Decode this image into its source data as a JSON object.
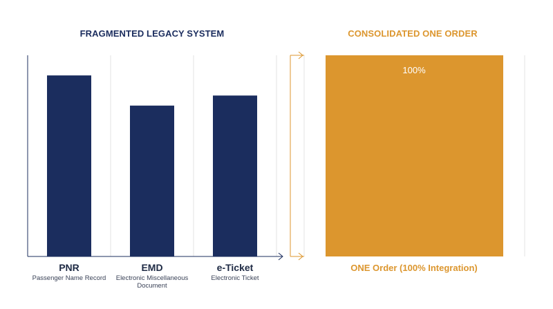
{
  "colors": {
    "navy": "#1b2d5e",
    "orange": "#dc962e",
    "grid": "#e3e3e3",
    "white": "#ffffff"
  },
  "titles": {
    "left": "FRAGMENTED LEGACY SYSTEM",
    "right": "CONSOLIDATED ONE ORDER"
  },
  "chart_data": [
    {
      "type": "bar",
      "title": "FRAGMENTED LEGACY SYSTEM",
      "categories": [
        "PNR",
        "EMD",
        "e-Ticket"
      ],
      "subtitles": [
        "Passenger Name Record",
        "Electronic Miscellaneous Document",
        "Electronic Ticket"
      ],
      "subtitle_lines": [
        [
          "Passenger Name Record"
        ],
        [
          "Electronic Miscellaneous",
          "Document"
        ],
        [
          "Electronic Ticket"
        ]
      ],
      "values": [
        90,
        75,
        80
      ],
      "ylim": [
        0,
        100
      ],
      "grid": true
    },
    {
      "type": "bar",
      "title": "CONSOLIDATED ONE ORDER",
      "categories": [
        "ONE Order (100% Integration)"
      ],
      "values": [
        100
      ],
      "data_labels": [
        "100%"
      ],
      "ylim": [
        0,
        100
      ],
      "grid": true
    }
  ]
}
